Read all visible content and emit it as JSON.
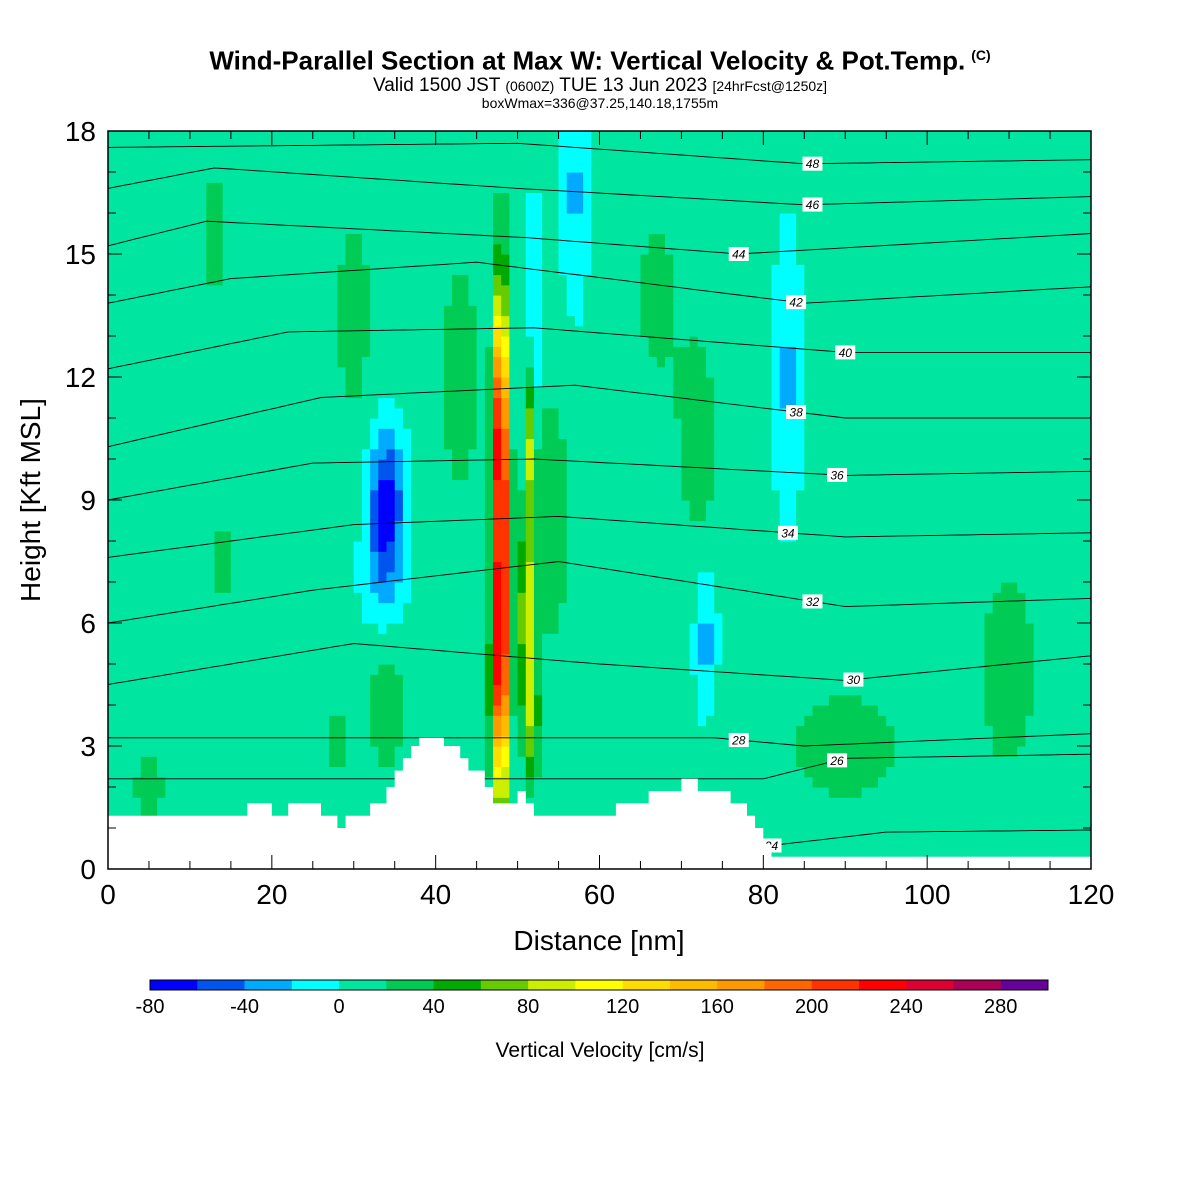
{
  "header": {
    "title": "Wind-Parallel Section at Max W: Vertical Velocity & Pot.Temp.",
    "copyright": "(C)",
    "valid_prefix": "Valid 1500 JST",
    "valid_utc": "(0600Z)",
    "valid_date": "TUE 13 Jun 2023",
    "forecast": "[24hrFcst@1250z]",
    "box_info": "boxWmax=336@37.25,140.18,1755m"
  },
  "colors": {
    "background_field": "#00ffff",
    "terrain": "#ffffff",
    "contour": "#000000",
    "colorbar": [
      "#0000ff",
      "#0055ee",
      "#00aaff",
      "#00ffff",
      "#00e6a0",
      "#00cc55",
      "#00aa00",
      "#66cc00",
      "#ccee00",
      "#ffff00",
      "#ffdd00",
      "#ffbb00",
      "#ff9900",
      "#ff6600",
      "#ff3300",
      "#ff0000",
      "#dd0033",
      "#aa0055",
      "#660099"
    ]
  },
  "chart_data": {
    "type": "heatmap",
    "title": "Wind-Parallel Section at Max W: Vertical Velocity & Pot.Temp.",
    "xlabel": "Distance [nm]",
    "ylabel": "Height [Kft MSL]",
    "xlim": [
      0,
      120
    ],
    "ylim": [
      0,
      18
    ],
    "x_ticks": [
      "0",
      "20",
      "40",
      "60",
      "80",
      "100",
      "120"
    ],
    "y_ticks": [
      "0",
      "3",
      "6",
      "9",
      "12",
      "15",
      "18"
    ],
    "colorbar": {
      "label": "Vertical Velocity [cm/s]",
      "min": -80,
      "max": 300,
      "step": 20,
      "tick_labels": [
        "-80",
        "-40",
        "0",
        "40",
        "80",
        "120",
        "160",
        "200",
        "240",
        "280"
      ]
    },
    "terrain_profile": [
      [
        0,
        1.3
      ],
      [
        17,
        1.3
      ],
      [
        17,
        1.6
      ],
      [
        20,
        1.6
      ],
      [
        20,
        1.3
      ],
      [
        22,
        1.3
      ],
      [
        22,
        1.6
      ],
      [
        26,
        1.6
      ],
      [
        26,
        1.3
      ],
      [
        28,
        1.3
      ],
      [
        28,
        1.0
      ],
      [
        29,
        1.0
      ],
      [
        29,
        1.3
      ],
      [
        32,
        1.3
      ],
      [
        32,
        1.6
      ],
      [
        34,
        1.6
      ],
      [
        34,
        2.0
      ],
      [
        35,
        2.0
      ],
      [
        35,
        2.4
      ],
      [
        36,
        2.4
      ],
      [
        36,
        2.7
      ],
      [
        37,
        2.7
      ],
      [
        37,
        3.0
      ],
      [
        38,
        3.0
      ],
      [
        38,
        3.2
      ],
      [
        41,
        3.2
      ],
      [
        41,
        3.0
      ],
      [
        43,
        3.0
      ],
      [
        43,
        2.7
      ],
      [
        44,
        2.7
      ],
      [
        44,
        2.4
      ],
      [
        46,
        2.4
      ],
      [
        46,
        2.0
      ],
      [
        47,
        2.0
      ],
      [
        47,
        1.6
      ],
      [
        50,
        1.6
      ],
      [
        50,
        1.9
      ],
      [
        51,
        1.9
      ],
      [
        51,
        1.6
      ],
      [
        52,
        1.6
      ],
      [
        52,
        1.3
      ],
      [
        62,
        1.3
      ],
      [
        62,
        1.6
      ],
      [
        66,
        1.6
      ],
      [
        66,
        1.9
      ],
      [
        70,
        1.9
      ],
      [
        70,
        2.2
      ],
      [
        72,
        2.2
      ],
      [
        72,
        1.9
      ],
      [
        76,
        1.9
      ],
      [
        76,
        1.6
      ],
      [
        78,
        1.6
      ],
      [
        78,
        1.3
      ],
      [
        79,
        1.3
      ],
      [
        79,
        1.0
      ],
      [
        80,
        1.0
      ],
      [
        80,
        0.6
      ],
      [
        81,
        0.6
      ],
      [
        81,
        0.3
      ],
      [
        120,
        0.3
      ]
    ],
    "w_cells": [
      {
        "x": 48,
        "y": 7.5,
        "sx": 0.9,
        "sy": 5.5,
        "v": 280
      },
      {
        "x": 47.8,
        "y": 11.5,
        "sx": 0.7,
        "sy": 2.2,
        "v": 90
      },
      {
        "x": 47.5,
        "y": 4.5,
        "sx": 1.1,
        "sy": 2.0,
        "v": 60
      },
      {
        "x": 51.2,
        "y": 6.0,
        "sx": 1.0,
        "sy": 2.5,
        "v": 90
      },
      {
        "x": 51.5,
        "y": 10.5,
        "sx": 0.5,
        "sy": 2.0,
        "v": 70
      },
      {
        "x": 51.8,
        "y": 3.5,
        "sx": 0.9,
        "sy": 1.5,
        "v": 50
      },
      {
        "x": 34,
        "y": 9.0,
        "sx": 2.0,
        "sy": 1.6,
        "v": -80
      },
      {
        "x": 33.5,
        "y": 7.2,
        "sx": 2.3,
        "sy": 1.2,
        "v": -30
      },
      {
        "x": 57,
        "y": 16.5,
        "sx": 1.4,
        "sy": 2.5,
        "v": -30
      },
      {
        "x": 52,
        "y": 13.5,
        "sx": 0.8,
        "sy": 2.5,
        "v": -35
      },
      {
        "x": 83,
        "y": 12.0,
        "sx": 1.6,
        "sy": 3.0,
        "v": -30
      },
      {
        "x": 73,
        "y": 5.5,
        "sx": 1.2,
        "sy": 1.6,
        "v": -35
      },
      {
        "x": 30,
        "y": 13.5,
        "sx": 2.5,
        "sy": 3.0,
        "v": 25
      },
      {
        "x": 13,
        "y": 15.5,
        "sx": 2.0,
        "sy": 2.5,
        "v": 20
      },
      {
        "x": 14,
        "y": 7.5,
        "sx": 2.5,
        "sy": 1.5,
        "v": 20
      },
      {
        "x": 43,
        "y": 12.0,
        "sx": 3.0,
        "sy": 3.5,
        "v": 25
      },
      {
        "x": 54,
        "y": 8.5,
        "sx": 2.5,
        "sy": 3.0,
        "v": 35
      },
      {
        "x": 67,
        "y": 14.0,
        "sx": 3.5,
        "sy": 3.0,
        "v": 20
      },
      {
        "x": 72,
        "y": 10.5,
        "sx": 2.5,
        "sy": 2.5,
        "v": 30
      },
      {
        "x": 90,
        "y": 3.0,
        "sx": 12.0,
        "sy": 2.2,
        "v": 20
      },
      {
        "x": 110,
        "y": 5.0,
        "sx": 4.0,
        "sy": 3.0,
        "v": 25
      },
      {
        "x": 34,
        "y": 3.8,
        "sx": 2.5,
        "sy": 1.6,
        "v": 30
      },
      {
        "x": 28,
        "y": 3.2,
        "sx": 1.5,
        "sy": 1.5,
        "v": 20
      },
      {
        "x": 5,
        "y": 2.0,
        "sx": 3.0,
        "sy": 1.5,
        "v": 20
      }
    ],
    "theta_contours": [
      {
        "label": "24",
        "levels": [
          [
            0,
            0.55
          ],
          [
            80,
            0.55
          ],
          [
            95,
            0.9
          ],
          [
            120,
            0.95
          ]
        ],
        "label_x": 81
      },
      {
        "label": "26",
        "levels": [
          [
            80,
            2.2
          ],
          [
            90,
            2.7
          ],
          [
            120,
            2.8
          ]
        ],
        "label_x": 89
      },
      {
        "label": "28",
        "levels": [
          [
            74,
            3.2
          ],
          [
            85,
            3.0
          ],
          [
            120,
            3.3
          ]
        ],
        "label_x": 77
      },
      {
        "label": "30",
        "levels": [
          [
            0,
            4.5
          ],
          [
            30,
            5.5
          ],
          [
            60,
            5.0
          ],
          [
            90,
            4.6
          ],
          [
            120,
            5.2
          ]
        ],
        "label_x": 91
      },
      {
        "label": "32",
        "levels": [
          [
            0,
            6.0
          ],
          [
            25,
            6.8
          ],
          [
            55,
            7.5
          ],
          [
            90,
            6.4
          ],
          [
            120,
            6.6
          ]
        ],
        "label_x": 86
      },
      {
        "label": "34",
        "levels": [
          [
            0,
            7.6
          ],
          [
            30,
            8.4
          ],
          [
            55,
            8.6
          ],
          [
            90,
            8.1
          ],
          [
            120,
            8.2
          ]
        ],
        "label_x": 83
      },
      {
        "label": "36",
        "levels": [
          [
            0,
            9.0
          ],
          [
            25,
            9.9
          ],
          [
            52,
            10.0
          ],
          [
            90,
            9.6
          ],
          [
            120,
            9.7
          ]
        ],
        "label_x": 89
      },
      {
        "label": "38",
        "levels": [
          [
            0,
            10.3
          ],
          [
            26,
            11.5
          ],
          [
            57,
            11.8
          ],
          [
            90,
            11.0
          ],
          [
            120,
            11.0
          ]
        ],
        "label_x": 84
      },
      {
        "label": "40",
        "levels": [
          [
            0,
            12.2
          ],
          [
            22,
            13.1
          ],
          [
            52,
            13.2
          ],
          [
            90,
            12.6
          ],
          [
            120,
            12.6
          ]
        ],
        "label_x": 90
      },
      {
        "label": "42",
        "levels": [
          [
            0,
            13.8
          ],
          [
            15,
            14.4
          ],
          [
            45,
            14.8
          ],
          [
            85,
            13.8
          ],
          [
            120,
            14.2
          ]
        ],
        "label_x": 84
      },
      {
        "label": "44",
        "levels": [
          [
            0,
            15.2
          ],
          [
            12,
            15.8
          ],
          [
            51,
            15.4
          ],
          [
            77,
            15.0
          ],
          [
            120,
            15.5
          ]
        ],
        "label_x": 77
      },
      {
        "label": "46",
        "levels": [
          [
            0,
            16.6
          ],
          [
            13,
            17.1
          ],
          [
            50,
            16.6
          ],
          [
            85,
            16.2
          ],
          [
            120,
            16.4
          ]
        ],
        "label_x": 86
      },
      {
        "label": "48",
        "levels": [
          [
            0,
            17.6
          ],
          [
            50,
            17.7
          ],
          [
            85,
            17.2
          ],
          [
            120,
            17.3
          ]
        ],
        "label_x": 86
      }
    ]
  }
}
